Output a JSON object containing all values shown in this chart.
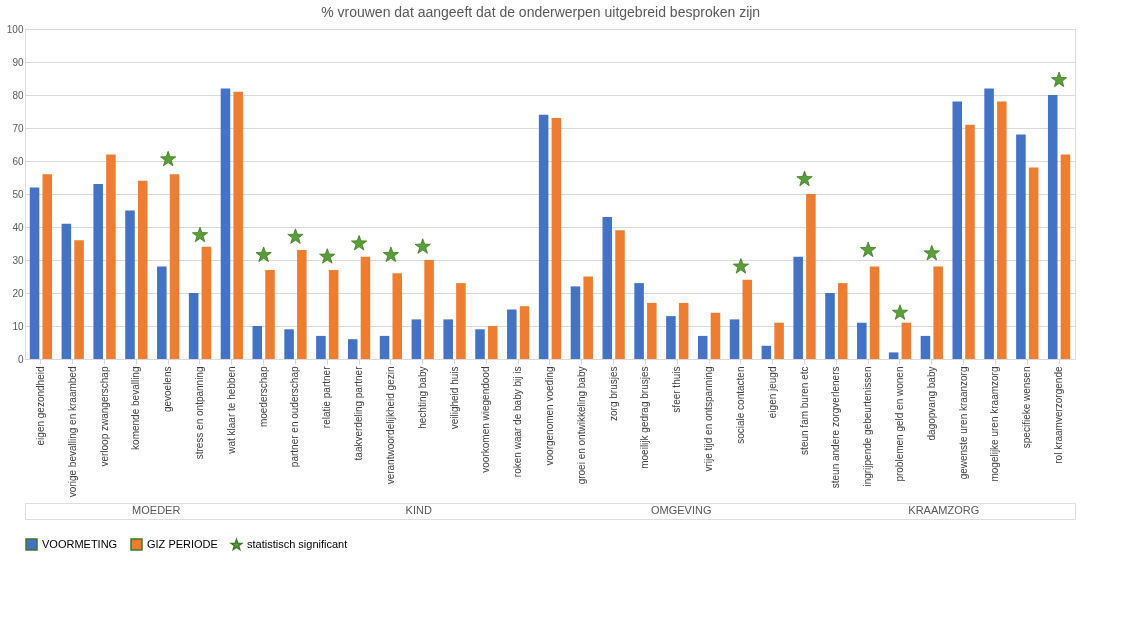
{
  "chart_data": {
    "type": "bar",
    "title": "% vrouwen dat aangeeft dat de onderwerpen uitgebreid besproken zijn",
    "categories": [
      "eigen gezondheid",
      "vorige bevalling en kraambed",
      "verloop zwangerschap",
      "komende bevalling",
      "gevoelens",
      "stress en ontpanning",
      "wat klaar te hebben",
      "moederschap",
      "partner en ouderschap",
      "relatie partner",
      "taakverdeling partner",
      "verantwoordelijkheid gezin",
      "hechting baby",
      "veiligheid huis",
      "voorkomen wiegendood",
      "roken waar de baby bij is",
      "voorgenomen voeding",
      "groei en ontwikkeling baby",
      "zorg brusjes",
      "moeilijk gedrag brusjes",
      "sfeer thuis",
      "vrije tijd en ontspanning",
      "sociale contacten",
      "eigen jeugd",
      "steun fam buren etc",
      "steun andere zorgverleners",
      "ingrijpende gebeurtenissen",
      "problemen geld en wonen",
      "dagopvang baby",
      "gewenste uren kraanzorg",
      "mogelijke uren kraamzorg",
      "specifieke wensen",
      "rol kraamverzorgende"
    ],
    "series": [
      {
        "name": "VOORMETING",
        "color": "#4472c4",
        "values": [
          52,
          41,
          53,
          45,
          28,
          20,
          82,
          10,
          9,
          7,
          6,
          7,
          12,
          12,
          9,
          15,
          74,
          22,
          43,
          23,
          13,
          7,
          12,
          4,
          31,
          20,
          11,
          2,
          7,
          78,
          82,
          68,
          80
        ]
      },
      {
        "name": "GIZ PERIODE",
        "color": "#ed7d31",
        "values": [
          56,
          36,
          62,
          54,
          56,
          34,
          81,
          27,
          33,
          27,
          31,
          26,
          30,
          23,
          10,
          16,
          73,
          25,
          39,
          17,
          17,
          14,
          24,
          11,
          50,
          23,
          28,
          11,
          28,
          71,
          78,
          58,
          62
        ]
      },
      {
        "name": "statistisch significant",
        "type": "scatter",
        "marker": "star",
        "color": "#5a9e3a",
        "values": [
          null,
          null,
          null,
          null,
          60.5,
          37.5,
          null,
          31.5,
          37,
          31,
          35,
          31.5,
          34,
          null,
          null,
          null,
          null,
          null,
          null,
          null,
          null,
          null,
          28,
          null,
          54.5,
          null,
          33,
          14,
          32,
          null,
          null,
          null,
          84.5
        ]
      }
    ],
    "ylim": [
      0,
      100
    ],
    "yticks": [
      0,
      10,
      20,
      30,
      40,
      50,
      60,
      70,
      80,
      90,
      100
    ],
    "grid": "y",
    "legend": "bottom",
    "annotations": [
      "MOEDER",
      "KIND",
      "OMGEVING",
      "KRAAMZORG"
    ]
  }
}
